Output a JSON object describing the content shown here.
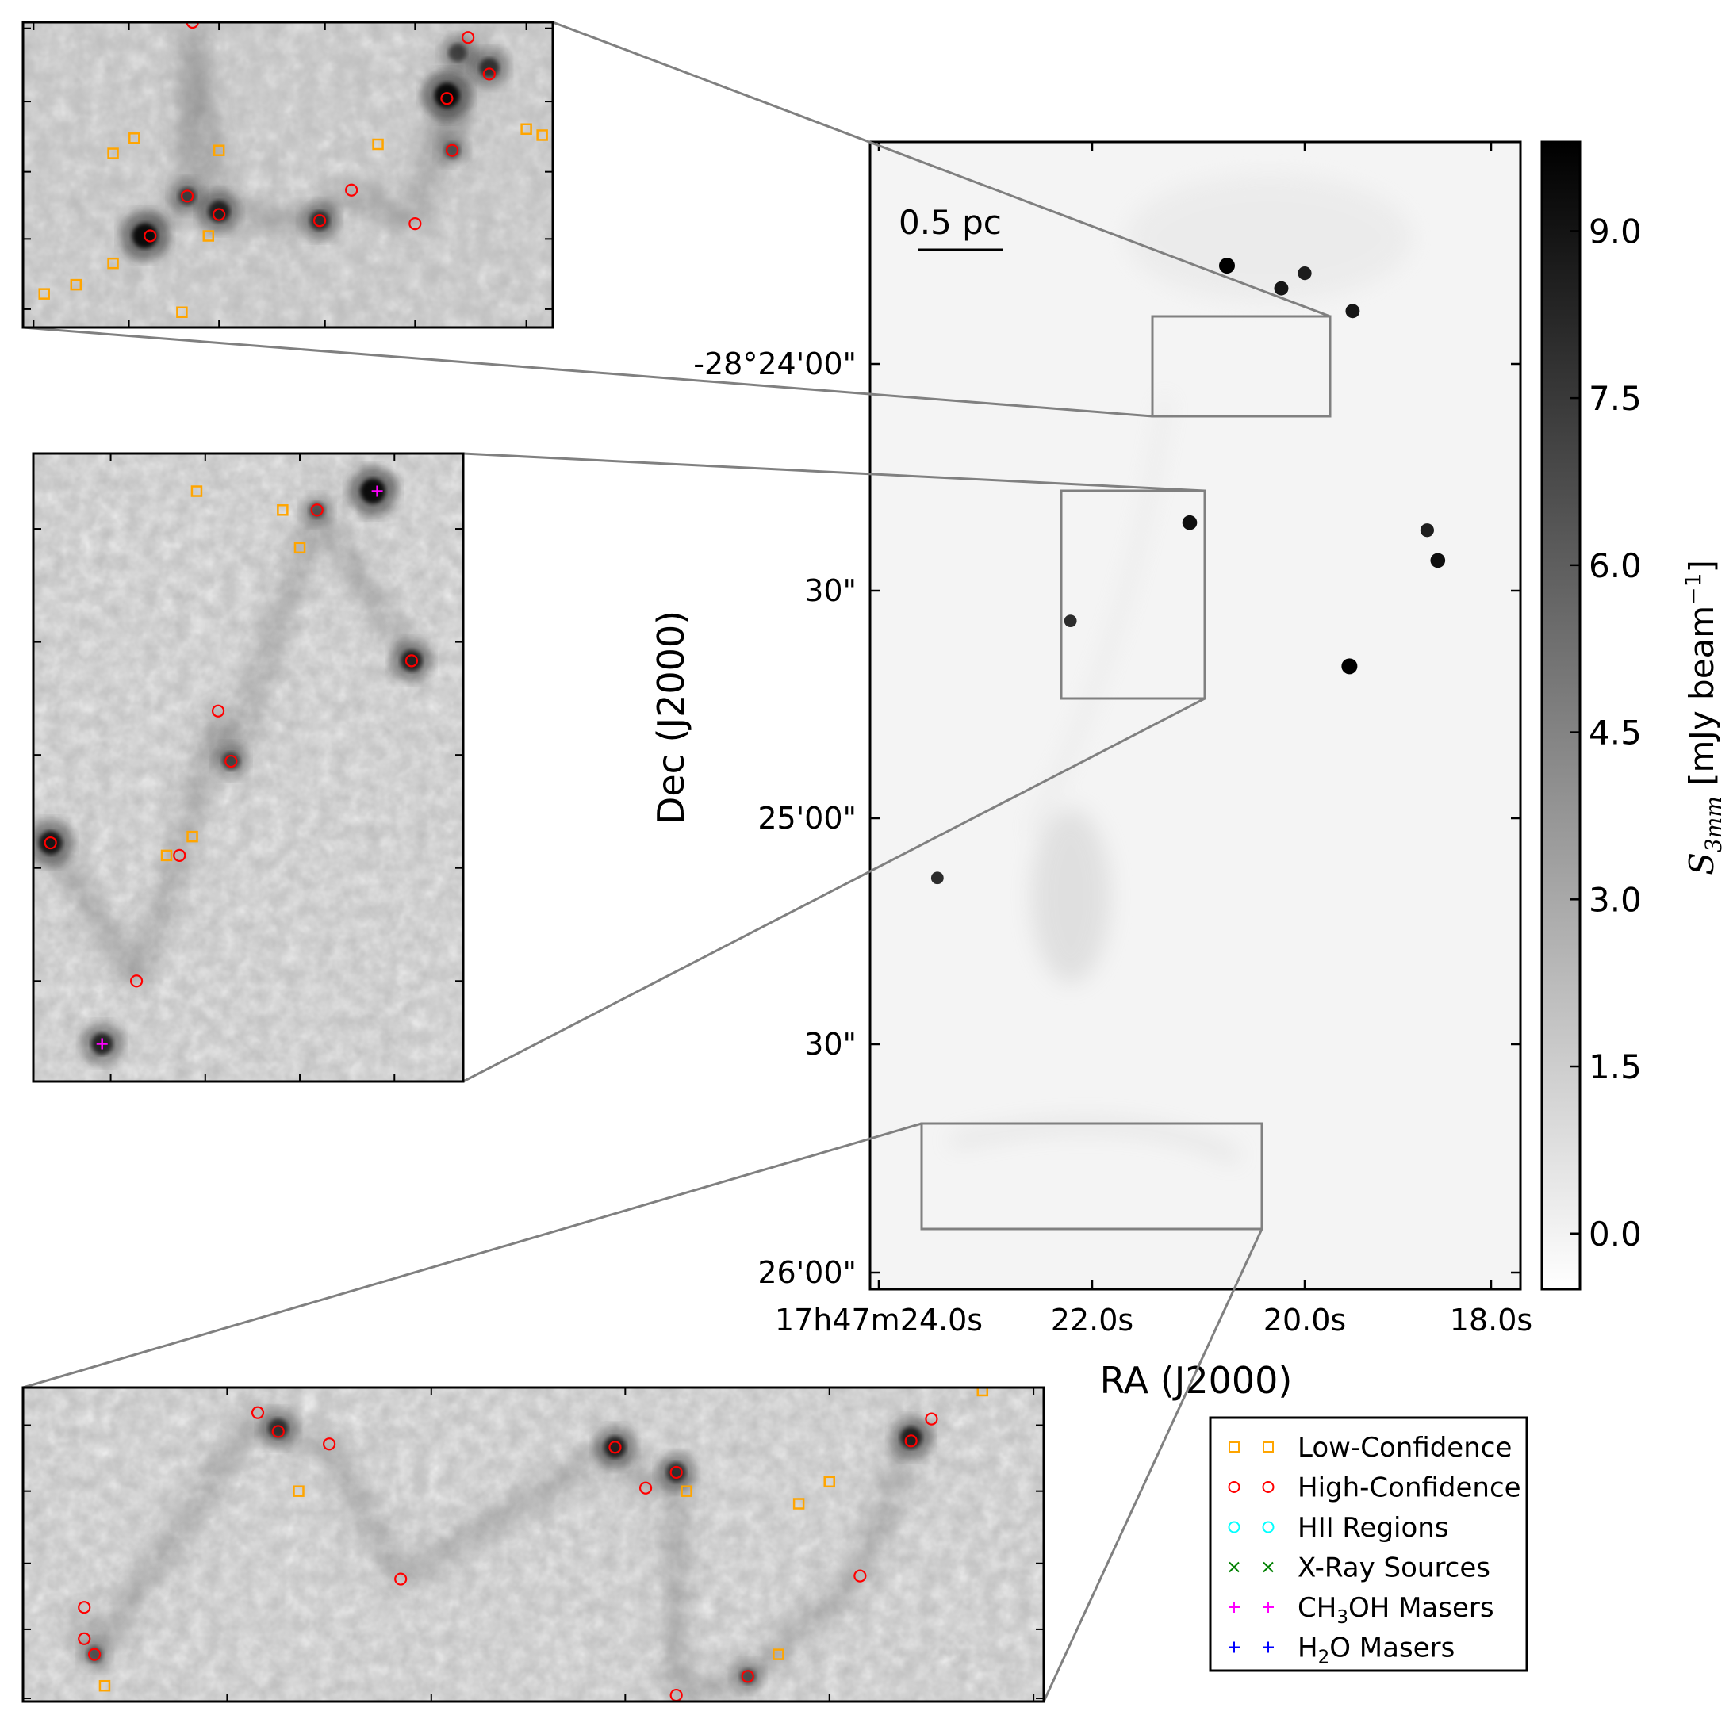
{
  "chart_data": {
    "type": "scatter",
    "title": "",
    "main_map": {
      "xlabel": "RA (J2000)",
      "ylabel": "Dec (J2000)",
      "x_ticks": [
        "17h47m24.0s",
        "22.0s",
        "20.0s",
        "18.0s"
      ],
      "y_ticks": [
        "-28°24'00\"",
        "30\"",
        "25'00\"",
        "30\"",
        "26'00\""
      ],
      "scalebar_label": "0.5 pc",
      "sources": [
        {
          "ra_s": 20.73,
          "dec": "-28°23'47\"",
          "brightness": 1.0
        },
        {
          "ra_s": 20.22,
          "dec": "-28°23'50\"",
          "brightness": 0.85
        },
        {
          "ra_s": 20.0,
          "dec": "-28°23'48\"",
          "brightness": 0.8
        },
        {
          "ra_s": 19.55,
          "dec": "-28°23'53\"",
          "brightness": 0.85
        },
        {
          "ra_s": 21.08,
          "dec": "-28°24'21\"",
          "brightness": 0.9
        },
        {
          "ra_s": 18.85,
          "dec": "-28°24'22\"",
          "brightness": 0.8
        },
        {
          "ra_s": 18.75,
          "dec": "-28°24'26\"",
          "brightness": 0.9
        },
        {
          "ra_s": 19.58,
          "dec": "-28°24'40\"",
          "brightness": 1.0
        },
        {
          "ra_s": 22.2,
          "dec": "-28°24'34\"",
          "brightness": 0.7
        },
        {
          "ra_s": 23.45,
          "dec": "-28°25'08\"",
          "brightness": 0.7
        }
      ]
    },
    "colorbar": {
      "label": "S_3mm [mJy beam^-1]",
      "label_main": "S",
      "label_sub": "3mm",
      "label_unit": " [mJy beam",
      "label_exp": "−1",
      "label_close": "]",
      "ticks": [
        "0.0",
        "1.5",
        "3.0",
        "4.5",
        "6.0",
        "7.5",
        "9.0"
      ],
      "vmin": -0.5,
      "vmax": 9.8,
      "cmap": "gray_r"
    },
    "legend": {
      "placement": "lower-right",
      "entries": [
        {
          "label": "Low-Confidence",
          "marker": "square",
          "color": "#ffa500"
        },
        {
          "label": "High-Confidence",
          "marker": "circle",
          "color": "#ff0000"
        },
        {
          "label": "HII Regions",
          "marker": "circle",
          "color": "#00ffff"
        },
        {
          "label": "X-Ray Sources",
          "marker": "x",
          "color": "#008000"
        },
        {
          "label": "CH3OH Masers",
          "label_pre": "CH",
          "label_sub": "3",
          "label_post": "OH Masers",
          "marker": "plus",
          "color": "#ff00ff"
        },
        {
          "label": "H2O Masers",
          "label_pre": "H",
          "label_sub": "2",
          "label_post": "O Masers",
          "marker": "plus",
          "color": "#0000ff"
        }
      ]
    },
    "insets": [
      {
        "name": "top",
        "region": "upper box",
        "low_confidence": [
          [
            0.17,
            0.43
          ],
          [
            0.21,
            0.38
          ],
          [
            0.37,
            0.42
          ],
          [
            0.67,
            0.4
          ],
          [
            0.95,
            0.35
          ],
          [
            0.98,
            0.37
          ],
          [
            0.35,
            0.7
          ],
          [
            0.17,
            0.79
          ],
          [
            0.1,
            0.86
          ],
          [
            0.04,
            0.89
          ],
          [
            0.3,
            0.95
          ]
        ],
        "high_confidence": [
          [
            0.32,
            0.0
          ],
          [
            0.84,
            0.05
          ],
          [
            0.88,
            0.17
          ],
          [
            0.8,
            0.25
          ],
          [
            0.81,
            0.42
          ],
          [
            0.31,
            0.57
          ],
          [
            0.37,
            0.63
          ],
          [
            0.56,
            0.65
          ],
          [
            0.62,
            0.55
          ],
          [
            0.74,
            0.66
          ],
          [
            0.24,
            0.7
          ]
        ],
        "blobs": [
          [
            0.8,
            0.24,
            1.0
          ],
          [
            0.23,
            0.7,
            1.0
          ],
          [
            0.37,
            0.62,
            0.8
          ],
          [
            0.56,
            0.65,
            0.7
          ],
          [
            0.31,
            0.57,
            0.6
          ],
          [
            0.82,
            0.1,
            0.6
          ],
          [
            0.88,
            0.15,
            0.7
          ],
          [
            0.81,
            0.42,
            0.5
          ]
        ]
      },
      {
        "name": "middle",
        "region": "middle box",
        "low_confidence": [
          [
            0.38,
            0.06
          ],
          [
            0.58,
            0.09
          ],
          [
            0.62,
            0.15
          ],
          [
            0.37,
            0.61
          ],
          [
            0.31,
            0.64
          ]
        ],
        "high_confidence": [
          [
            0.66,
            0.09
          ],
          [
            0.88,
            0.33
          ],
          [
            0.43,
            0.41
          ],
          [
            0.46,
            0.49
          ],
          [
            0.04,
            0.62
          ],
          [
            0.34,
            0.64
          ],
          [
            0.24,
            0.84
          ]
        ],
        "ch3oh_masers": [
          [
            0.8,
            0.06
          ],
          [
            0.16,
            0.94
          ]
        ],
        "blobs": [
          [
            0.79,
            0.06,
            1.0
          ],
          [
            0.88,
            0.33,
            0.8
          ],
          [
            0.46,
            0.49,
            0.6
          ],
          [
            0.04,
            0.62,
            0.9
          ],
          [
            0.16,
            0.94,
            0.8
          ],
          [
            0.66,
            0.09,
            0.5
          ]
        ]
      },
      {
        "name": "bottom",
        "region": "lower box",
        "low_confidence": [
          [
            0.27,
            0.33
          ],
          [
            0.65,
            0.33
          ],
          [
            0.76,
            0.37
          ],
          [
            0.79,
            0.3
          ],
          [
            0.94,
            0.01
          ],
          [
            0.74,
            0.85
          ],
          [
            0.08,
            0.95
          ]
        ],
        "high_confidence": [
          [
            0.23,
            0.08
          ],
          [
            0.25,
            0.14
          ],
          [
            0.3,
            0.18
          ],
          [
            0.58,
            0.19
          ],
          [
            0.64,
            0.27
          ],
          [
            0.61,
            0.32
          ],
          [
            0.87,
            0.17
          ],
          [
            0.89,
            0.1
          ],
          [
            0.37,
            0.61
          ],
          [
            0.82,
            0.6
          ],
          [
            0.06,
            0.7
          ],
          [
            0.06,
            0.8
          ],
          [
            0.07,
            0.85
          ],
          [
            0.71,
            0.92
          ],
          [
            0.64,
            0.98
          ]
        ],
        "blobs": [
          [
            0.25,
            0.13,
            0.7
          ],
          [
            0.58,
            0.19,
            0.8
          ],
          [
            0.64,
            0.27,
            0.7
          ],
          [
            0.87,
            0.16,
            0.8
          ],
          [
            0.07,
            0.85,
            0.5
          ],
          [
            0.71,
            0.92,
            0.5
          ]
        ]
      }
    ]
  }
}
